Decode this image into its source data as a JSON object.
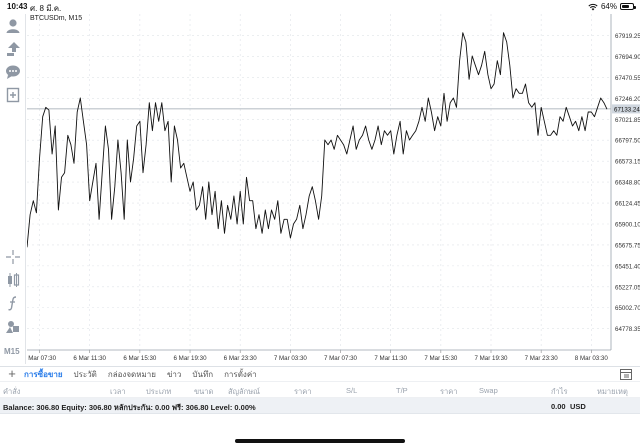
{
  "status_bar": {
    "time": "10:43",
    "date": "ศ. 8 มี.ค.",
    "battery": "64%",
    "battery_level": 0.64
  },
  "chart": {
    "symbol_label": "BTCUSDm, M15",
    "current_price": "67133.24",
    "line_color": "#111111",
    "price_line_color": "#9aa3ad",
    "price_tag_color": "#cfd6de"
  },
  "chart_data": {
    "type": "line",
    "title": "BTCUSDm, M15",
    "ylim": [
      64550,
      68150
    ],
    "y_ticks": [
      "67919.25",
      "67694.90",
      "67470.55",
      "67246.20",
      "67021.85",
      "66797.50",
      "66573.15",
      "66348.80",
      "66124.45",
      "65900.10",
      "65675.75",
      "65451.40",
      "65227.05",
      "65002.70",
      "64778.35"
    ],
    "x_ticks": [
      "6 Mar 07:30",
      "6 Mar 11:30",
      "6 Mar 15:30",
      "6 Mar 19:30",
      "6 Mar 23:30",
      "7 Mar 03:30",
      "7 Mar 07:30",
      "7 Mar 11:30",
      "7 Mar 15:30",
      "7 Mar 19:30",
      "7 Mar 23:30",
      "8 Mar 03:30"
    ],
    "x_tick_index": [
      4,
      20,
      36,
      52,
      68,
      84,
      100,
      116,
      132,
      148,
      164,
      180
    ],
    "last_price": 67133.24,
    "grid": true,
    "series": [
      {
        "values": [
          65650,
          66000,
          66150,
          66020,
          66600,
          67050,
          67150,
          67120,
          66650,
          66950,
          66050,
          66400,
          66450,
          66850,
          66750,
          66550,
          67100,
          67250,
          67000,
          66750,
          66150,
          66350,
          66550,
          65950,
          66450,
          66950,
          66700,
          65950,
          66300,
          66800,
          66450,
          65950,
          66800,
          66350,
          66600,
          66950,
          67000,
          66450,
          66750,
          67200,
          66900,
          67200,
          67000,
          67200,
          66900,
          67000,
          66350,
          66950,
          66800,
          66500,
          66550,
          66400,
          66250,
          66350,
          66050,
          66100,
          66300,
          65950,
          66350,
          66000,
          66250,
          65850,
          66150,
          65800,
          66100,
          65950,
          66200,
          65900,
          66250,
          65900,
          66400,
          66150,
          66150,
          65850,
          66000,
          65800,
          66050,
          65850,
          66050,
          65950,
          66150,
          65800,
          65950,
          65950,
          65750,
          65900,
          65950,
          66100,
          65850,
          66000,
          66200,
          66300,
          66150,
          65950,
          66200,
          66800,
          66750,
          66800,
          66700,
          66850,
          66800,
          66750,
          66650,
          66800,
          66950,
          66700,
          66800,
          66850,
          66950,
          66800,
          66700,
          66800,
          66950,
          66750,
          66900,
          66850,
          66900,
          66650,
          66850,
          67000,
          66650,
          66900,
          66800,
          66850,
          66900,
          67000,
          67150,
          67000,
          67250,
          67100,
          66900,
          67050,
          66950,
          67300,
          67000,
          67200,
          67250,
          67150,
          67650,
          67950,
          67850,
          67450,
          67700,
          67600,
          67500,
          67600,
          67750,
          67500,
          67350,
          67400,
          67650,
          67500,
          67950,
          67850,
          67600,
          67250,
          67350,
          67300,
          67300,
          67400,
          67200,
          67150,
          67200,
          66850,
          67150,
          67000,
          66850,
          66850,
          66900,
          66850,
          67050,
          67000,
          67150,
          67050,
          66950,
          67000,
          66900,
          67050,
          66900,
          67100,
          67100,
          67050,
          67150,
          67250,
          67200,
          67130
        ]
      }
    ]
  },
  "left_toolbar": {
    "icons": [
      "person-icon",
      "trade-icon",
      "chat-icon",
      "new-document-icon",
      "crosshair-icon",
      "indicators-icon",
      "function-icon",
      "objects-icon"
    ],
    "timeframe": "M15"
  },
  "tabs": {
    "add_label": "+",
    "items": [
      "การซื้อขาย",
      "ประวัติ",
      "กล่องจดหมาย",
      "ข่าว",
      "บันทึก",
      "การตั้งค่า"
    ],
    "active_index": 0
  },
  "columns": [
    "คำสั่ง",
    "เวลา",
    "ประเภท",
    "ขนาด",
    "สัญลักษณ์",
    "ราคา",
    "S/L",
    "T/P",
    "ราคา",
    "Swap",
    "กำไร",
    "หมายเหตุ"
  ],
  "balance": {
    "summary": "Balance: 306.80 Equity: 306.80 หลักประกัน: 0.00 ฟรี: 306.80 Level: 0.00%",
    "profit": "0.00",
    "currency": "USD"
  }
}
